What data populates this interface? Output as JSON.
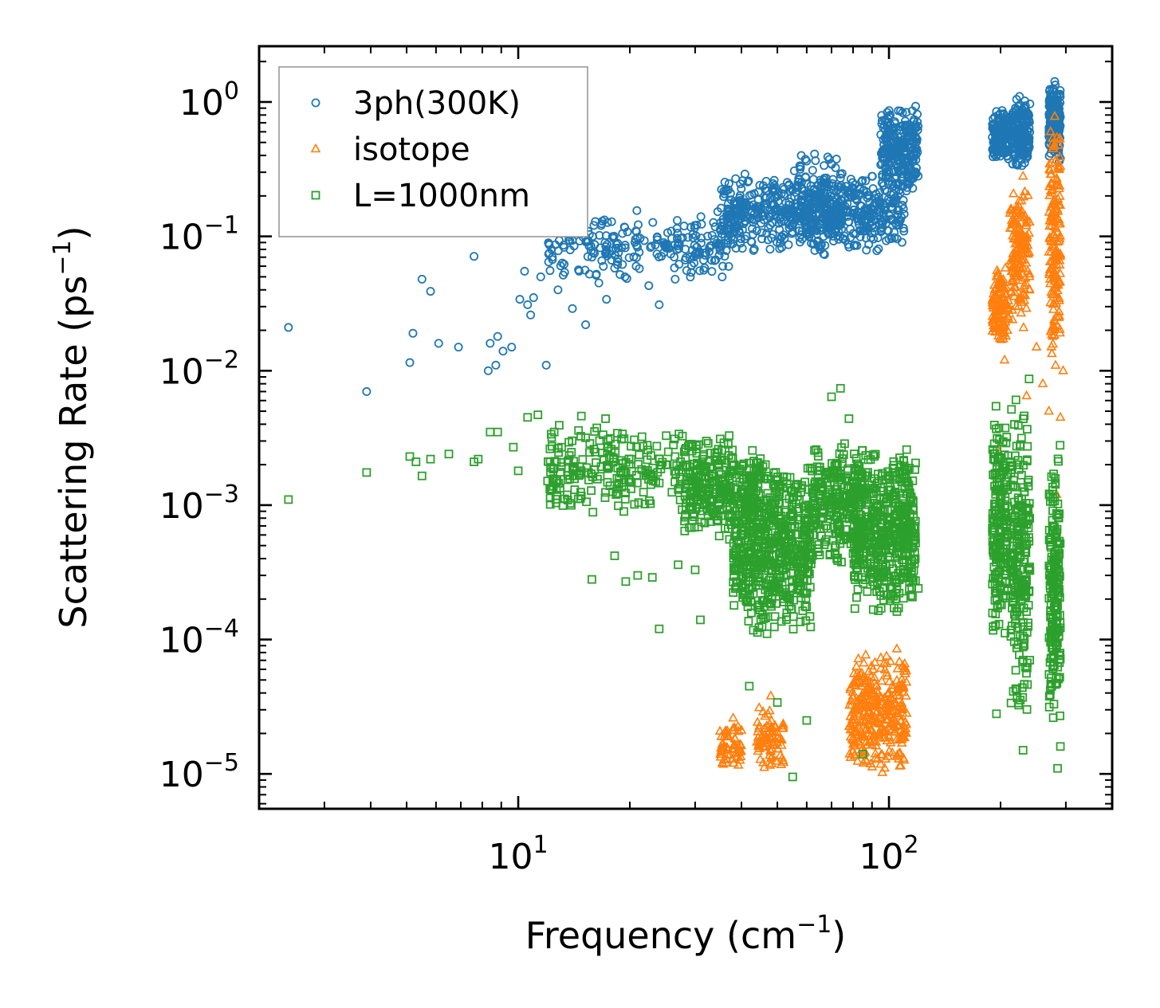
{
  "chart_data": {
    "type": "scatter",
    "xscale": "log",
    "yscale": "log",
    "xlabel": "Frequency (cm",
    "xlabel_exp": "−1",
    "xlabel_close": ")",
    "ylabel": "Scattering Rate (ps",
    "ylabel_exp": "−1",
    "ylabel_close": ")",
    "xlim": [
      2.0,
      400
    ],
    "ylim": [
      5.5e-06,
      2.6
    ],
    "x_major_ticks": [
      {
        "value": 10,
        "base": "10",
        "exp": "1"
      },
      {
        "value": 100,
        "base": "10",
        "exp": "2"
      }
    ],
    "y_major_ticks": [
      {
        "value": 1,
        "base": "10",
        "exp": "0"
      },
      {
        "value": 0.1,
        "base": "10",
        "exp": "−1"
      },
      {
        "value": 0.01,
        "base": "10",
        "exp": "−2"
      },
      {
        "value": 0.001,
        "base": "10",
        "exp": "−3"
      },
      {
        "value": 0.0001,
        "base": "10",
        "exp": "−4"
      },
      {
        "value": 1e-05,
        "base": "10",
        "exp": "−5"
      }
    ],
    "legend_position": "top-left",
    "series": [
      {
        "name": "3ph(300K)",
        "marker": "circle",
        "color": "#1f77b4",
        "points": [
          [
            2.4,
            0.021
          ],
          [
            3.9,
            0.007
          ],
          [
            5.1,
            0.0115
          ],
          [
            5.2,
            0.019
          ],
          [
            5.5,
            0.048
          ],
          [
            5.8,
            0.039
          ],
          [
            6.1,
            0.016
          ],
          [
            6.9,
            0.015
          ],
          [
            7.6,
            0.071
          ],
          [
            8.3,
            0.01
          ],
          [
            8.4,
            0.016
          ],
          [
            8.7,
            0.011
          ],
          [
            8.8,
            0.018
          ],
          [
            9.1,
            0.014
          ],
          [
            9.6,
            0.015
          ],
          [
            10.1,
            0.034
          ],
          [
            10.4,
            0.055
          ],
          [
            10.6,
            0.031
          ],
          [
            10.8,
            0.026
          ],
          [
            11.0,
            0.035
          ],
          [
            11.5,
            0.05
          ],
          [
            11.9,
            0.011
          ],
          [
            12.3,
            0.08
          ],
          [
            12.8,
            0.04
          ],
          [
            13.3,
            0.062
          ],
          [
            14.0,
            0.029
          ],
          [
            14.6,
            0.055
          ],
          [
            15.2,
            0.022
          ],
          [
            15.8,
            0.07
          ],
          [
            16.5,
            0.045
          ],
          [
            17.3,
            0.034
          ],
          [
            18.2,
            0.058
          ],
          [
            19.4,
            0.05
          ],
          [
            20.8,
            0.06
          ],
          [
            22.5,
            0.043
          ],
          [
            24.0,
            0.031
          ],
          [
            26.5,
            0.048
          ],
          [
            29.0,
            0.07
          ],
          [
            33.0,
            0.085
          ],
          [
            38.0,
            0.095
          ],
          [
            44.0,
            0.11
          ],
          [
            52.0,
            0.13
          ],
          [
            58.0,
            0.4
          ],
          [
            63.0,
            0.41
          ],
          [
            70.0,
            0.2
          ],
          [
            80.0,
            0.23
          ],
          [
            90.0,
            0.28
          ],
          [
            100.0,
            0.35
          ],
          [
            110.0,
            0.5
          ],
          [
            118.0,
            0.93
          ],
          [
            195.0,
            0.85
          ],
          [
            225.0,
            1.1
          ],
          [
            280.0,
            1.42
          ],
          [
            290.0,
            0.38
          ]
        ],
        "bands": [
          {
            "x": [
              12.0,
              38.0
            ],
            "y": [
              0.045,
              0.16
            ],
            "n": 230
          },
          {
            "x": [
              35.0,
              110.0
            ],
            "y": [
              0.075,
              0.3
            ],
            "n": 600
          },
          {
            "x": [
              55.0,
              75.0
            ],
            "y": [
              0.066,
              0.42
            ],
            "n": 160
          },
          {
            "x": [
              95.0,
              120.0
            ],
            "y": [
              0.2,
              0.95
            ],
            "n": 260
          },
          {
            "x": [
              190.0,
              210.0
            ],
            "y": [
              0.36,
              0.9
            ],
            "n": 140
          },
          {
            "x": [
              215.0,
              240.0
            ],
            "y": [
              0.3,
              1.15
            ],
            "n": 180
          },
          {
            "x": [
              270.0,
              290.0
            ],
            "y": [
              0.34,
              1.45
            ],
            "n": 180
          }
        ]
      },
      {
        "name": "isotope",
        "marker": "triangle",
        "color": "#ff7f0e",
        "points": [
          [
            38.0,
            2.6e-05
          ],
          [
            48.0,
            3.8e-05
          ],
          [
            50.0,
            1.7e-05
          ],
          [
            90.0,
            4.2e-05
          ],
          [
            105.0,
            8.5e-05
          ],
          [
            195.0,
            0.05
          ],
          [
            198.0,
            0.0025
          ],
          [
            205.0,
            0.012
          ],
          [
            220.0,
            0.03
          ],
          [
            230.0,
            0.28
          ],
          [
            235.0,
            0.0065
          ],
          [
            250.0,
            0.015
          ],
          [
            260.0,
            0.008
          ],
          [
            270.0,
            0.005
          ],
          [
            275.0,
            0.0185
          ],
          [
            280.0,
            0.78
          ],
          [
            283.0,
            0.0012
          ],
          [
            290.0,
            0.0045
          ],
          [
            295.0,
            0.01
          ]
        ],
        "bands": [
          {
            "x": [
              35.0,
              40.0
            ],
            "y": [
              1e-05,
              2.5e-05
            ],
            "n": 60
          },
          {
            "x": [
              44.0,
              52.0
            ],
            "y": [
              1e-05,
              3.3e-05
            ],
            "n": 80
          },
          {
            "x": [
              78.0,
              112.0
            ],
            "y": [
              1e-05,
              8e-05
            ],
            "n": 350
          },
          {
            "x": [
              190.0,
              210.0
            ],
            "y": [
              0.014,
              0.06
            ],
            "n": 120
          },
          {
            "x": [
              212.0,
              240.0
            ],
            "y": [
              0.02,
              0.26
            ],
            "n": 160
          },
          {
            "x": [
              270.0,
              290.0
            ],
            "y": [
              0.01,
              0.75
            ],
            "n": 170
          }
        ]
      },
      {
        "name": "L=1000nm",
        "marker": "square",
        "color": "#2ca02c",
        "points": [
          [
            2.4,
            0.0011
          ],
          [
            3.9,
            0.00175
          ],
          [
            5.1,
            0.0023
          ],
          [
            5.3,
            0.0021
          ],
          [
            5.5,
            0.00165
          ],
          [
            5.8,
            0.0022
          ],
          [
            6.5,
            0.0024
          ],
          [
            7.6,
            0.0021
          ],
          [
            7.8,
            0.0022
          ],
          [
            8.4,
            0.0035
          ],
          [
            8.8,
            0.0035
          ],
          [
            9.7,
            0.0027
          ],
          [
            10.0,
            0.0018
          ],
          [
            10.6,
            0.0045
          ],
          [
            11.3,
            0.0047
          ],
          [
            12.5,
            0.0035
          ],
          [
            14.8,
            0.0046
          ],
          [
            15.8,
            0.00028
          ],
          [
            17.2,
            0.0044
          ],
          [
            18.2,
            0.00042
          ],
          [
            19.5,
            0.00027
          ],
          [
            21.0,
            0.0003
          ],
          [
            23.0,
            0.00029
          ],
          [
            24.0,
            0.00012
          ],
          [
            27.0,
            0.00036
          ],
          [
            30.0,
            0.00033
          ],
          [
            31.0,
            0.00014
          ],
          [
            42.0,
            4.5e-05
          ],
          [
            50.0,
            3.4e-05
          ],
          [
            55.0,
            9.5e-06
          ],
          [
            60.0,
            2.5e-05
          ],
          [
            70.0,
            0.0064
          ],
          [
            74.0,
            0.0074
          ],
          [
            78.0,
            0.0044
          ],
          [
            85.0,
            1.4e-05
          ],
          [
            120.0,
            0.00024
          ],
          [
            195.0,
            2.8e-05
          ],
          [
            230.0,
            1.5e-05
          ],
          [
            285.0,
            1.1e-05
          ],
          [
            290.0,
            1.6e-05
          ]
        ],
        "bands": [
          {
            "x": [
              12.0,
              38.0
            ],
            "y": [
              0.0008,
              0.004
            ],
            "n": 300
          },
          {
            "x": [
              28.0,
              45.0
            ],
            "y": [
              0.0005,
              0.003
            ],
            "n": 220
          },
          {
            "x": [
              38.0,
              62.0
            ],
            "y": [
              0.0001,
              0.0025
            ],
            "n": 650
          },
          {
            "x": [
              62.0,
              85.0
            ],
            "y": [
              0.00035,
              0.003
            ],
            "n": 280
          },
          {
            "x": [
              80.0,
              118.0
            ],
            "y": [
              0.00015,
              0.0028
            ],
            "n": 520
          },
          {
            "x": [
              190.0,
              210.0
            ],
            "y": [
              8e-05,
              0.006
            ],
            "n": 200
          },
          {
            "x": [
              212.0,
              240.0
            ],
            "y": [
              2e-05,
              0.009
            ],
            "n": 230
          },
          {
            "x": [
              270.0,
              290.0
            ],
            "y": [
              2e-05,
              0.003
            ],
            "n": 200
          }
        ]
      }
    ]
  }
}
